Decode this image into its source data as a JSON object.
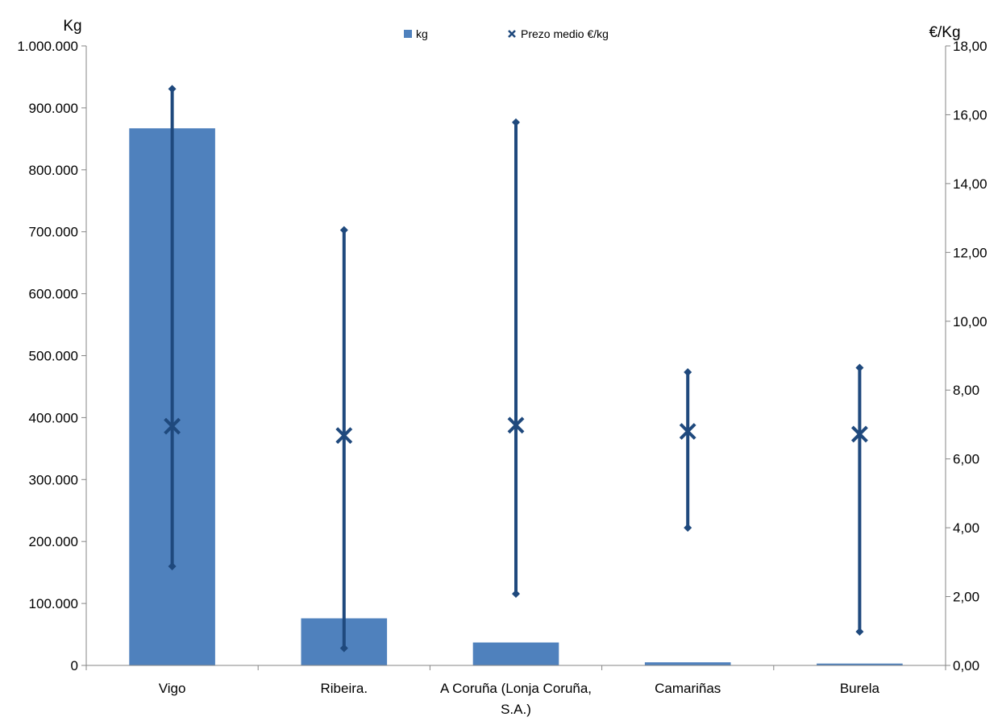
{
  "chart_data": {
    "type": "bar",
    "categories": [
      [
        "Vigo"
      ],
      [
        "Ribeira."
      ],
      [
        "A Coruña (Lonja Coruña,",
        "S.A.)"
      ],
      [
        "Camariñas"
      ],
      [
        "Burela"
      ]
    ],
    "series": [
      {
        "name": "kg",
        "type": "bar",
        "axis": "left",
        "color": "#4F81BD",
        "values": [
          867000,
          76000,
          37000,
          5000,
          3000
        ]
      },
      {
        "name": "Prezo medio €/kg",
        "type": "range-marker",
        "axis": "right",
        "color": "#1F497D",
        "values": [
          6.95,
          6.68,
          6.98,
          6.8,
          6.72
        ],
        "min": [
          2.88,
          0.5,
          2.08,
          4.0,
          0.98
        ],
        "max": [
          16.75,
          12.65,
          15.78,
          8.52,
          8.65
        ]
      }
    ],
    "y_left": {
      "title": "Kg",
      "min": 0,
      "max": 1000000,
      "ticks": [
        "0",
        "100.000",
        "200.000",
        "300.000",
        "400.000",
        "500.000",
        "600.000",
        "700.000",
        "800.000",
        "900.000",
        "1.000.000"
      ]
    },
    "y_right": {
      "title": "€/Kg",
      "min": 0,
      "max": 18,
      "ticks": [
        "0,00",
        "2,00",
        "4,00",
        "6,00",
        "8,00",
        "10,00",
        "12,00",
        "14,00",
        "16,00",
        "18,00"
      ]
    },
    "legend": {
      "position": "top",
      "items": [
        {
          "label": "kg",
          "symbol": "square",
          "color": "#4F81BD"
        },
        {
          "label": "Prezo medio €/kg",
          "symbol": "x",
          "color": "#1F497D"
        }
      ]
    },
    "grid": false
  }
}
